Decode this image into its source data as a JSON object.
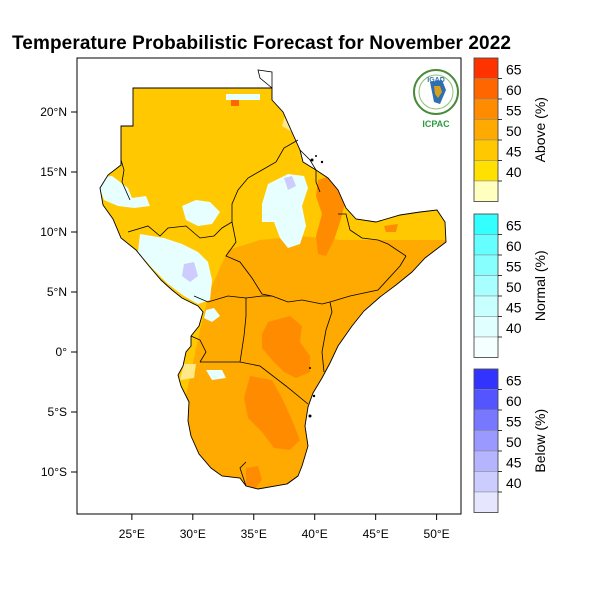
{
  "title": "Temperature Probabilistic Forecast for November 2022",
  "logo": {
    "top_text": "IGAD",
    "bottom_text": "ICPAC"
  },
  "axes": {
    "lon_ticks": [
      {
        "value": 25,
        "label": "25°E"
      },
      {
        "value": 30,
        "label": "30°E"
      },
      {
        "value": 35,
        "label": "35°E"
      },
      {
        "value": 40,
        "label": "40°E"
      },
      {
        "value": 45,
        "label": "45°E"
      },
      {
        "value": 50,
        "label": "50°E"
      }
    ],
    "lat_ticks": [
      {
        "value": 20,
        "label": "20°N"
      },
      {
        "value": 15,
        "label": "15°N"
      },
      {
        "value": 10,
        "label": "10°N"
      },
      {
        "value": 5,
        "label": "5°N"
      },
      {
        "value": 0,
        "label": "0°"
      },
      {
        "value": -5,
        "label": "5°S"
      },
      {
        "value": -10,
        "label": "10°S"
      }
    ],
    "lon_range": [
      20.5,
      52
    ],
    "lat_range": [
      -13.5,
      24.5
    ]
  },
  "colorbars": [
    {
      "title": "Above (%)",
      "labels": [
        "65",
        "60",
        "55",
        "50",
        "45",
        "40"
      ],
      "colors": [
        "#FF3300",
        "#FF6600",
        "#FF8C00",
        "#FFAA00",
        "#FFC800",
        "#FFE000",
        "#FFFFC0"
      ]
    },
    {
      "title": "Normal (%)",
      "labels": [
        "65",
        "60",
        "55",
        "50",
        "45",
        "40"
      ],
      "colors": [
        "#33FFFF",
        "#66FFFF",
        "#88FFFF",
        "#A8FFFF",
        "#C8FFFF",
        "#E0FFFF",
        "#F4FFFF"
      ]
    },
    {
      "title": "Below (%)",
      "labels": [
        "65",
        "60",
        "55",
        "50",
        "45",
        "40"
      ],
      "colors": [
        "#3333FF",
        "#5555FF",
        "#7777FF",
        "#9999FF",
        "#B4B4FF",
        "#CCCCFF",
        "#E6E6FF"
      ]
    }
  ],
  "map_colors": {
    "above_45": "#FFC800",
    "above_50": "#FFAA00",
    "above_55": "#FF8C00",
    "above_60": "#FF6600",
    "normal_40": "#E8FFFF",
    "below_40": "#CCCCFF",
    "above_40": "#FFE888"
  }
}
